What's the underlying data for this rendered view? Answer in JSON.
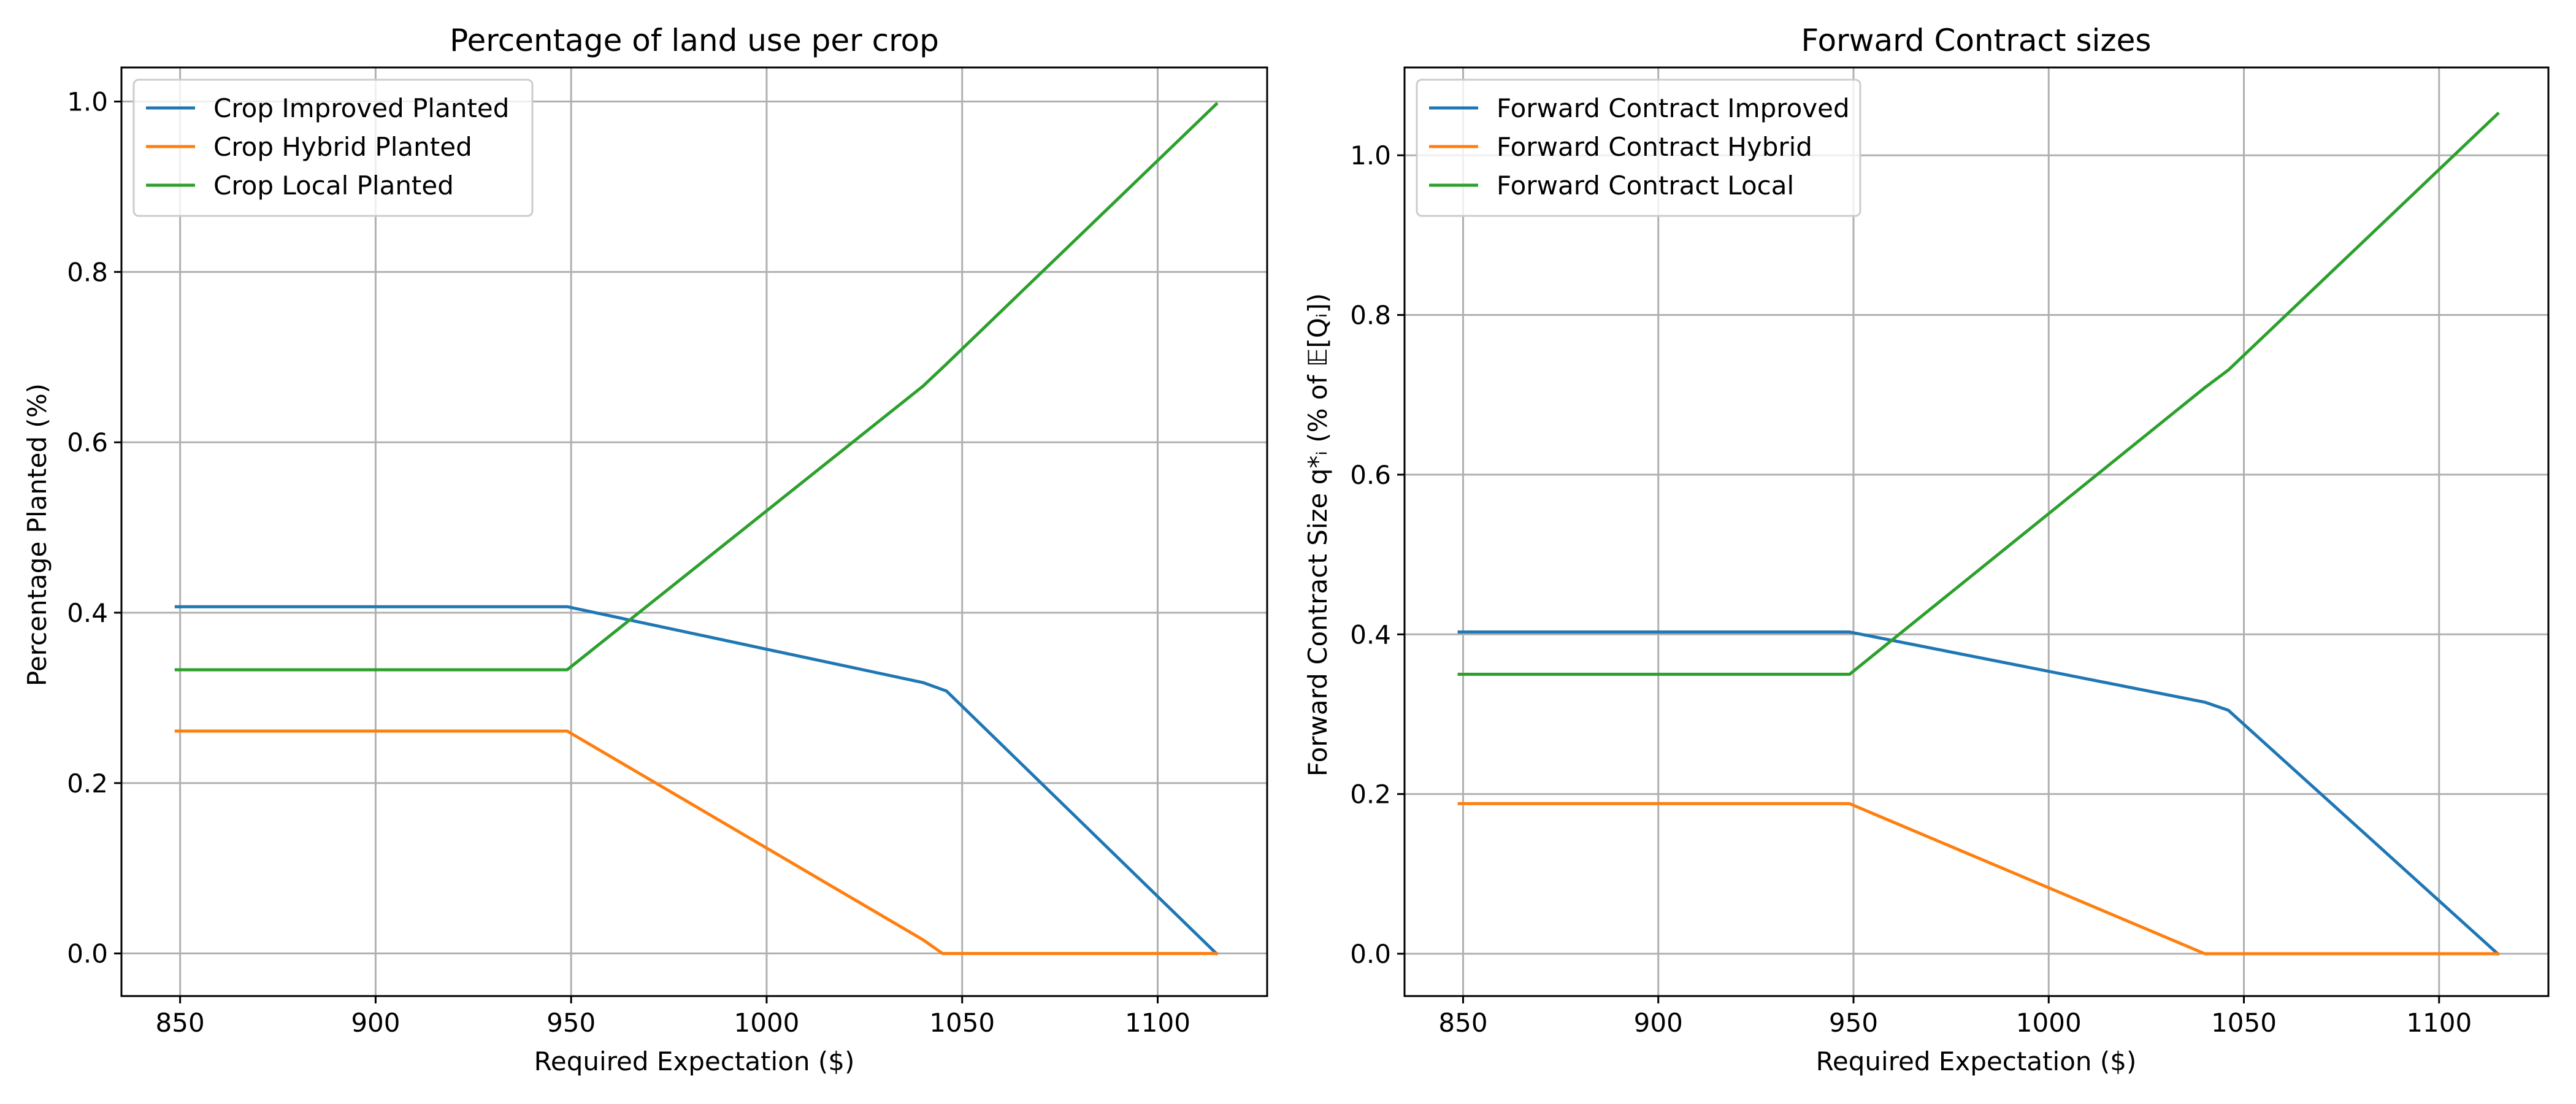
{
  "chart_data": [
    {
      "type": "line",
      "title": "Percentage of land use per crop",
      "xlabel": "Required Expectation ($)",
      "ylabel": "Percentage Planted (%)",
      "xlim": [
        835,
        1128
      ],
      "ylim": [
        -0.05,
        1.04
      ],
      "xticks": [
        850,
        900,
        950,
        1000,
        1050,
        1100
      ],
      "yticks": [
        0.0,
        0.2,
        0.4,
        0.6,
        0.8,
        1.0
      ],
      "grid": true,
      "legend_position": "upper-left",
      "series": [
        {
          "name": "Crop Improved Planted",
          "color": "#1f77b4",
          "x": [
            849,
            949,
            1040,
            1046,
            1115
          ],
          "y": [
            0.407,
            0.407,
            0.318,
            0.308,
            0.0
          ]
        },
        {
          "name": "Crop Hybrid Planted",
          "color": "#ff7f0e",
          "x": [
            849,
            949,
            1040,
            1045,
            1115
          ],
          "y": [
            0.261,
            0.261,
            0.016,
            0.0,
            0.0
          ]
        },
        {
          "name": "Crop Local Planted",
          "color": "#2ca02c",
          "x": [
            849,
            949,
            1040,
            1046,
            1115
          ],
          "y": [
            0.333,
            0.333,
            0.666,
            0.692,
            0.997
          ]
        }
      ]
    },
    {
      "type": "line",
      "title": "Forward Contract sizes",
      "xlabel": "Required Expectation ($)",
      "ylabel": "Forward Contract Size q*ᵢ (% of 𝔼[Qᵢ])",
      "xlim": [
        835,
        1128
      ],
      "ylim": [
        -0.053,
        1.11
      ],
      "xticks": [
        850,
        900,
        950,
        1000,
        1050,
        1100
      ],
      "yticks": [
        0.0,
        0.2,
        0.4,
        0.6,
        0.8,
        1.0
      ],
      "grid": true,
      "legend_position": "upper-left",
      "series": [
        {
          "name": "Forward Contract Improved",
          "color": "#1f77b4",
          "x": [
            849,
            949,
            1040,
            1046,
            1115
          ],
          "y": [
            0.403,
            0.403,
            0.315,
            0.305,
            0.0
          ]
        },
        {
          "name": "Forward Contract Hybrid",
          "color": "#ff7f0e",
          "x": [
            849,
            949,
            1040,
            1115
          ],
          "y": [
            0.188,
            0.188,
            0.0,
            0.0
          ]
        },
        {
          "name": "Forward Contract Local",
          "color": "#2ca02c",
          "x": [
            849,
            949,
            1040,
            1046,
            1115
          ],
          "y": [
            0.35,
            0.35,
            0.709,
            0.731,
            1.052
          ]
        }
      ]
    }
  ]
}
